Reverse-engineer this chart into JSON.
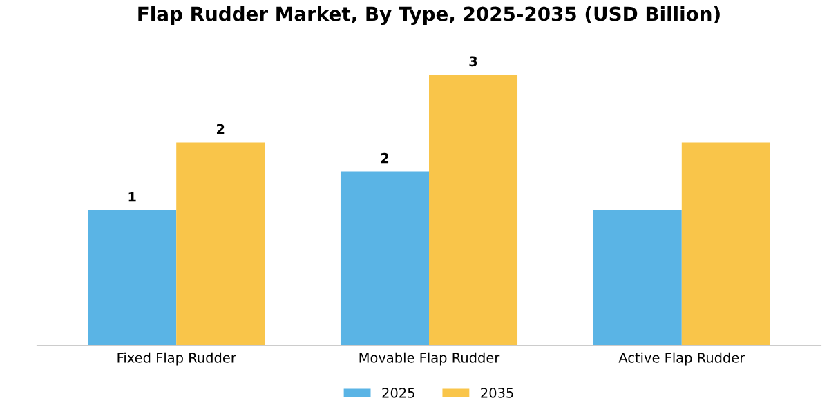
{
  "chart_data": {
    "type": "bar",
    "title": "Flap Rudder Market, By Type, 2025-2035 (USD Billion)",
    "categories": [
      "Fixed Flap Rudder",
      "Movable Flap Rudder",
      "Active Flap Rudder"
    ],
    "legend": "bottom",
    "series": [
      {
        "name": "2025",
        "color": "#5ab4e5",
        "values": [
          1.4,
          1.8,
          1.4
        ],
        "value_labels": [
          "1",
          "2",
          null
        ]
      },
      {
        "name": "2035",
        "color": "#f9c54a",
        "values": [
          2.1,
          2.8,
          2.1
        ],
        "value_labels": [
          "2",
          "3",
          null
        ]
      }
    ]
  }
}
